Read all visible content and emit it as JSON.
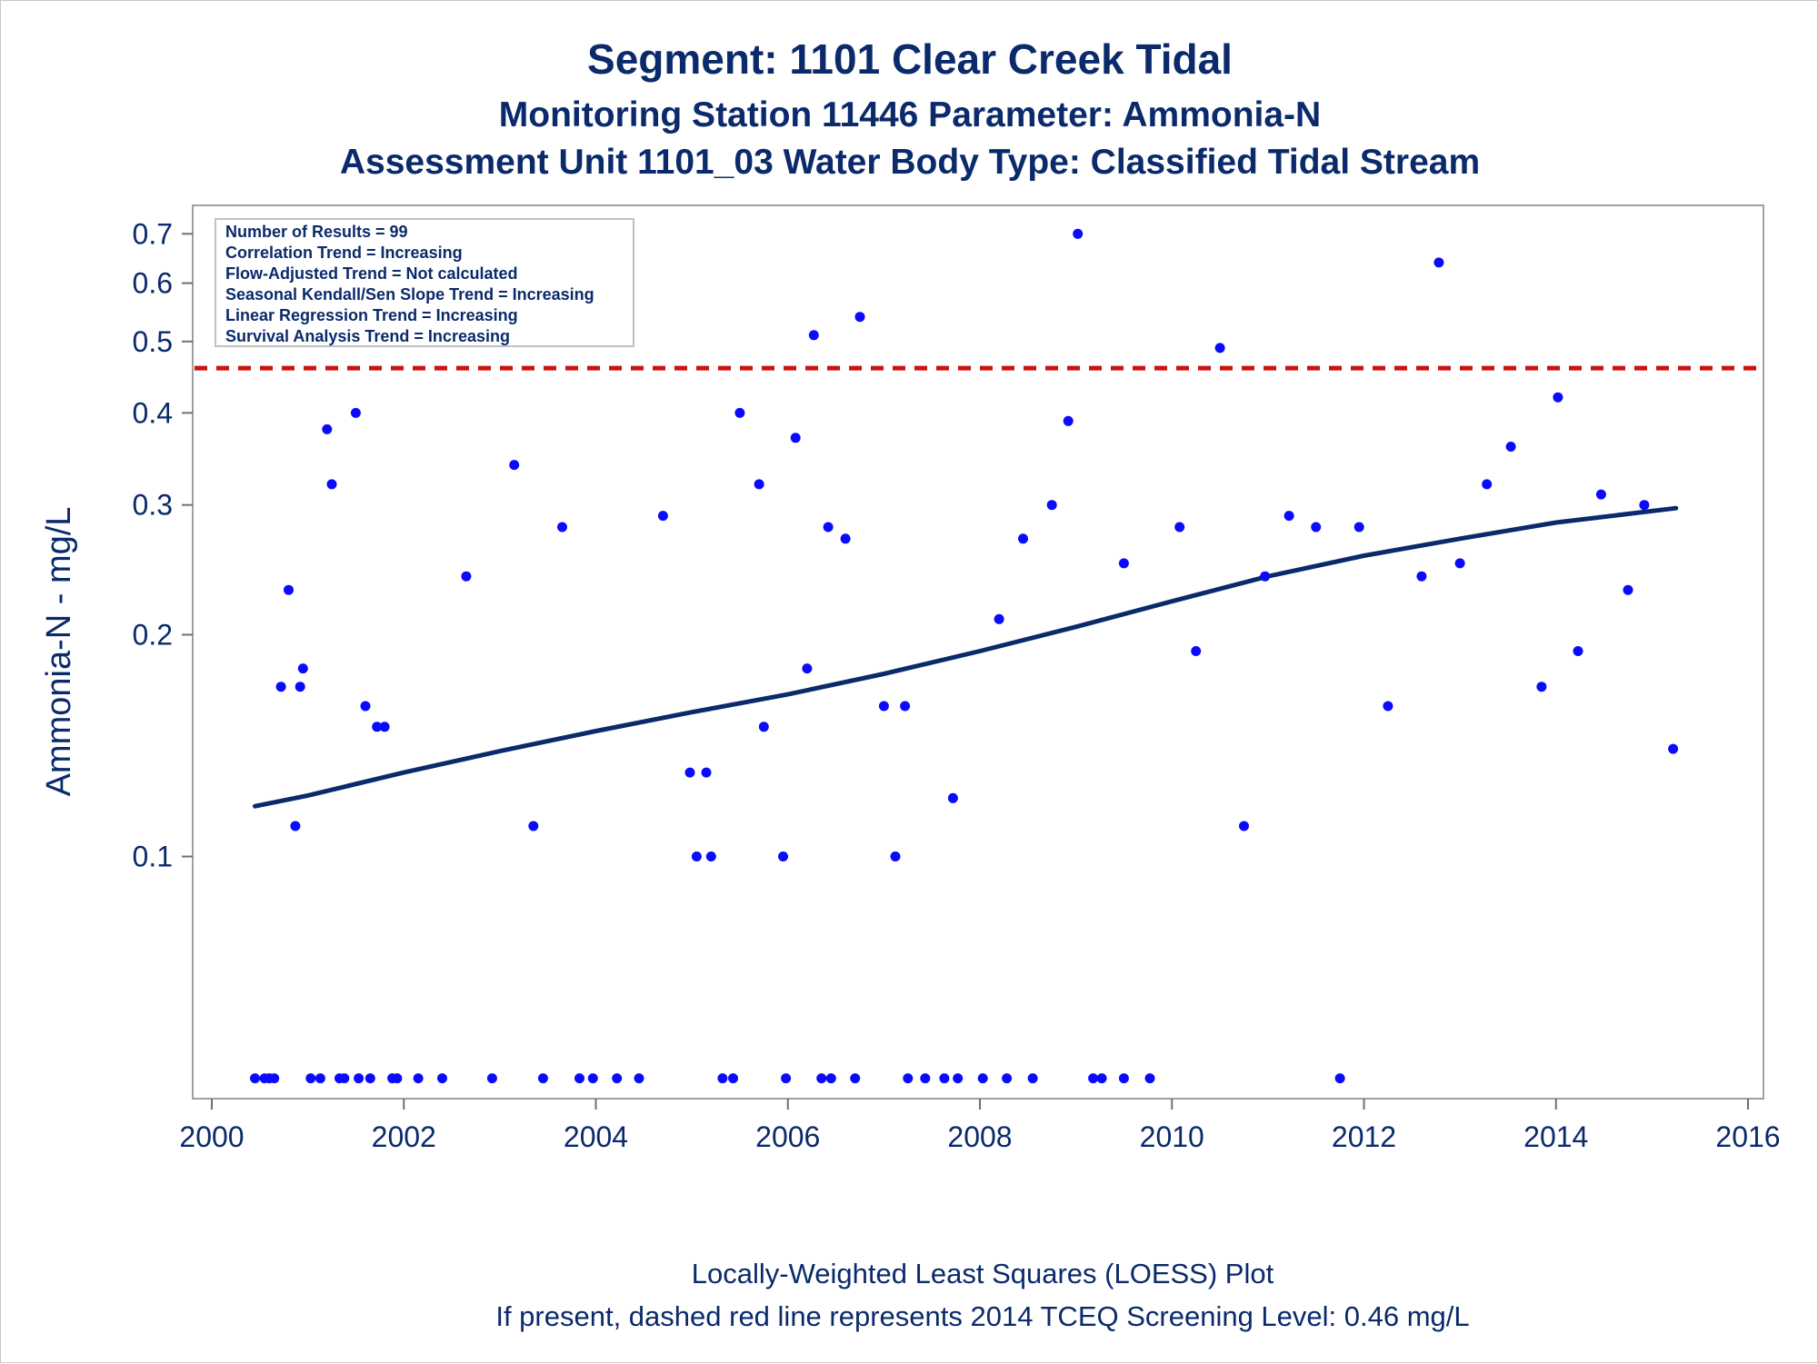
{
  "titles": {
    "line1": "Segment: 1101  Clear Creek Tidal",
    "line2": "Monitoring Station 11446 Parameter: Ammonia-N",
    "line3": "Assessment Unit 1101_03   Water Body Type: Classified Tidal Stream"
  },
  "stats_box": [
    "Number of Results = 99",
    "Correlation Trend = Increasing",
    "Flow-Adjusted Trend = Not calculated",
    "Seasonal Kendall/Sen Slope Trend = Increasing",
    "Linear Regression Trend = Increasing",
    "Survival Analysis Trend = Increasing"
  ],
  "footnotes": {
    "line1": "Locally-Weighted Least Squares (LOESS) Plot",
    "line2": "If present, dashed red line represents 2014 TCEQ Screening Level: 0.46 mg/L"
  },
  "colors": {
    "points": "#0a0aff",
    "loess": "#0a2a6b",
    "screening": "#cc1111",
    "text": "#0a2a6b"
  },
  "chart_data": {
    "type": "scatter",
    "ylabel": "Ammonia-N - mg/L",
    "xlabel": "",
    "y_scale": "log",
    "xlim": [
      2000,
      2016
    ],
    "ylim": [
      0.048,
      0.75
    ],
    "x_ticks": [
      2000,
      2002,
      2004,
      2006,
      2008,
      2010,
      2012,
      2014,
      2016
    ],
    "y_ticks": [
      0.1,
      0.2,
      0.3,
      0.4,
      0.5,
      0.6,
      0.7
    ],
    "y_tick_labels": [
      "0.1",
      "0.2",
      "0.3",
      "0.4",
      "0.5",
      "0.6",
      "0.7"
    ],
    "screening_level": 0.46,
    "grid": false,
    "series": [
      {
        "type": "scatter",
        "points": [
          [
            2000.72,
            0.17
          ],
          [
            2000.8,
            0.23
          ],
          [
            2000.87,
            0.11
          ],
          [
            2000.92,
            0.17
          ],
          [
            2000.95,
            0.18
          ],
          [
            2001.2,
            0.38
          ],
          [
            2001.25,
            0.32
          ],
          [
            2001.5,
            0.4
          ],
          [
            2001.6,
            0.16
          ],
          [
            2001.72,
            0.15
          ],
          [
            2001.8,
            0.15
          ],
          [
            2002.65,
            0.24
          ],
          [
            2003.15,
            0.34
          ],
          [
            2003.35,
            0.11
          ],
          [
            2003.65,
            0.28
          ],
          [
            2004.7,
            0.29
          ],
          [
            2004.98,
            0.13
          ],
          [
            2005.05,
            0.1
          ],
          [
            2005.15,
            0.13
          ],
          [
            2005.2,
            0.1
          ],
          [
            2005.5,
            0.4
          ],
          [
            2005.7,
            0.32
          ],
          [
            2005.75,
            0.15
          ],
          [
            2005.95,
            0.1
          ],
          [
            2006.08,
            0.37
          ],
          [
            2006.2,
            0.18
          ],
          [
            2006.27,
            0.51
          ],
          [
            2006.42,
            0.28
          ],
          [
            2006.6,
            0.27
          ],
          [
            2006.75,
            0.54
          ],
          [
            2007.0,
            0.16
          ],
          [
            2007.12,
            0.1
          ],
          [
            2007.22,
            0.16
          ],
          [
            2007.72,
            0.12
          ],
          [
            2008.2,
            0.21
          ],
          [
            2008.45,
            0.27
          ],
          [
            2008.75,
            0.3
          ],
          [
            2008.92,
            0.39
          ],
          [
            2009.02,
            0.7
          ],
          [
            2009.5,
            0.25
          ],
          [
            2010.08,
            0.28
          ],
          [
            2010.25,
            0.19
          ],
          [
            2010.5,
            0.49
          ],
          [
            2010.75,
            0.11
          ],
          [
            2010.97,
            0.24
          ],
          [
            2011.22,
            0.29
          ],
          [
            2011.5,
            0.28
          ],
          [
            2011.95,
            0.28
          ],
          [
            2012.25,
            0.16
          ],
          [
            2012.6,
            0.24
          ],
          [
            2012.78,
            0.64
          ],
          [
            2013.0,
            0.25
          ],
          [
            2013.28,
            0.32
          ],
          [
            2013.53,
            0.36
          ],
          [
            2013.85,
            0.17
          ],
          [
            2014.02,
            0.42
          ],
          [
            2014.23,
            0.19
          ],
          [
            2014.47,
            0.31
          ],
          [
            2014.75,
            0.23
          ],
          [
            2014.92,
            0.3
          ],
          [
            2015.22,
            0.14
          ],
          [
            2000.45,
            0.05
          ],
          [
            2000.55,
            0.05
          ],
          [
            2000.6,
            0.05
          ],
          [
            2000.65,
            0.05
          ],
          [
            2001.03,
            0.05
          ],
          [
            2001.13,
            0.05
          ],
          [
            2001.33,
            0.05
          ],
          [
            2001.38,
            0.05
          ],
          [
            2001.53,
            0.05
          ],
          [
            2001.65,
            0.05
          ],
          [
            2001.88,
            0.05
          ],
          [
            2001.93,
            0.05
          ],
          [
            2002.15,
            0.05
          ],
          [
            2002.4,
            0.05
          ],
          [
            2002.92,
            0.05
          ],
          [
            2003.45,
            0.05
          ],
          [
            2003.83,
            0.05
          ],
          [
            2003.97,
            0.05
          ],
          [
            2004.22,
            0.05
          ],
          [
            2004.45,
            0.05
          ],
          [
            2005.32,
            0.05
          ],
          [
            2005.43,
            0.05
          ],
          [
            2005.98,
            0.05
          ],
          [
            2006.35,
            0.05
          ],
          [
            2006.45,
            0.05
          ],
          [
            2006.7,
            0.05
          ],
          [
            2007.25,
            0.05
          ],
          [
            2007.43,
            0.05
          ],
          [
            2007.63,
            0.05
          ],
          [
            2007.77,
            0.05
          ],
          [
            2008.03,
            0.05
          ],
          [
            2008.28,
            0.05
          ],
          [
            2008.55,
            0.05
          ],
          [
            2009.18,
            0.05
          ],
          [
            2009.27,
            0.05
          ],
          [
            2009.5,
            0.05
          ],
          [
            2009.77,
            0.05
          ],
          [
            2011.75,
            0.05
          ]
        ]
      },
      {
        "type": "line",
        "points": [
          [
            2000.45,
            0.117
          ],
          [
            2001.0,
            0.121
          ],
          [
            2002.0,
            0.13
          ],
          [
            2003.0,
            0.139
          ],
          [
            2004.0,
            0.148
          ],
          [
            2005.0,
            0.157
          ],
          [
            2006.0,
            0.166
          ],
          [
            2007.0,
            0.177
          ],
          [
            2008.0,
            0.19
          ],
          [
            2009.0,
            0.205
          ],
          [
            2010.0,
            0.222
          ],
          [
            2011.0,
            0.24
          ],
          [
            2012.0,
            0.256
          ],
          [
            2013.0,
            0.27
          ],
          [
            2014.0,
            0.284
          ],
          [
            2015.25,
            0.297
          ]
        ]
      }
    ]
  }
}
